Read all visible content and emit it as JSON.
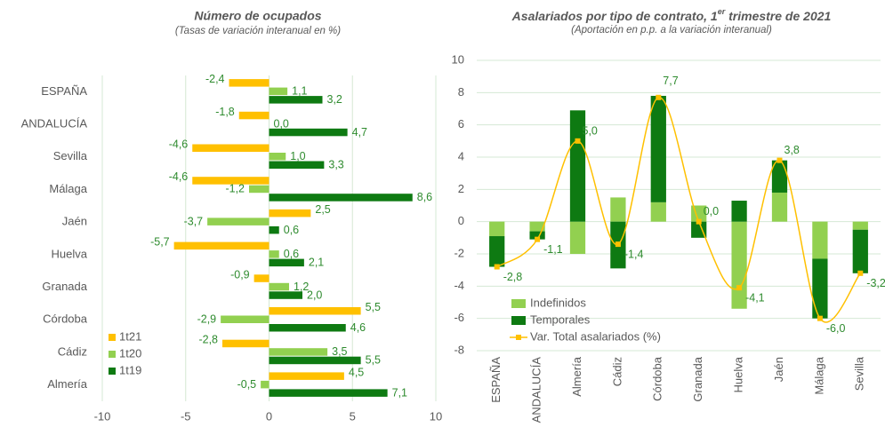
{
  "chart_data": [
    {
      "type": "barh",
      "title": "Número de ocupados",
      "subtitle": "(Tasas de variación interanual en %)",
      "categories": [
        "ESPAÑA",
        "ANDALUCÍA",
        "Sevilla",
        "Málaga",
        "Jaén",
        "Huelva",
        "Granada",
        "Córdoba",
        "Cádiz",
        "Almería"
      ],
      "series": [
        {
          "name": "1t21",
          "color": "#ffc000",
          "values": [
            -2.4,
            -1.8,
            -4.6,
            -4.6,
            2.5,
            -5.7,
            -0.9,
            5.5,
            -2.8,
            4.5
          ],
          "value_labels": [
            "-2,4",
            "-1,8",
            "-4,6",
            "-4,6",
            "2,5",
            "-5,7",
            "-0,9",
            "5,5",
            "-2,8",
            "4,5"
          ]
        },
        {
          "name": "1t20",
          "color": "#92d050",
          "values": [
            1.1,
            0.0,
            1.0,
            -1.2,
            -3.7,
            0.6,
            1.2,
            -2.9,
            3.5,
            -0.5
          ],
          "value_labels": [
            "1,1",
            "0,0",
            "1,0",
            "-1,2",
            "-3,7",
            "0,6",
            "1,2",
            "-2,9",
            "3,5",
            "-0,5"
          ]
        },
        {
          "name": "1t19",
          "color": "#0e7a12",
          "values": [
            3.2,
            4.7,
            3.3,
            8.6,
            0.6,
            2.1,
            2.0,
            4.6,
            5.5,
            7.1
          ],
          "value_labels": [
            "3,2",
            "4,7",
            "3,3",
            "8,6",
            "0,6",
            "2,1",
            "2,0",
            "4,6",
            "5,5",
            "7,1"
          ]
        }
      ],
      "xlim": [
        -10,
        10
      ],
      "xticks": [
        -10,
        -5,
        0,
        5,
        10
      ],
      "grid": true,
      "legend": "lower left"
    },
    {
      "type": "combo",
      "title": [
        "Asalariados por tipo de contrato, 1",
        "er",
        " trimestre de 2021"
      ],
      "subtitle": "(Aportación en p.p. a la variación interanual)",
      "categories": [
        "ESPAÑA",
        "ANDALUCÍA",
        "Almería",
        "Cádiz",
        "Córdoba",
        "Granada",
        "Huelva",
        "Jaén",
        "Málaga",
        "Sevilla"
      ],
      "series": [
        {
          "name": "Indefinidos",
          "type": "bar",
          "color": "#92d050",
          "values": [
            -0.9,
            -0.6,
            -2.0,
            1.5,
            1.2,
            1.0,
            -5.4,
            1.8,
            -2.3,
            -0.5
          ]
        },
        {
          "name": "Temporales",
          "type": "bar",
          "color": "#0e7a12",
          "values": [
            -1.9,
            -0.5,
            6.9,
            -2.9,
            6.6,
            -1.0,
            1.3,
            2.0,
            -3.7,
            -2.7
          ]
        },
        {
          "name": "Var. Total asalariados (%)",
          "type": "line",
          "color": "#ffc000",
          "values": [
            -2.8,
            -1.1,
            5.0,
            -1.4,
            7.7,
            0.0,
            -4.1,
            3.8,
            -6.0,
            -3.2
          ],
          "value_labels": [
            "-2,8",
            "-1,1",
            "5,0",
            "-1,4",
            "7,7",
            "0,0",
            "-4,1",
            "3,8",
            "-6,0",
            "-3,2"
          ]
        }
      ],
      "ylim": [
        -8,
        10
      ],
      "yticks": [
        -8,
        -6,
        -4,
        -2,
        0,
        2,
        4,
        6,
        8,
        10
      ],
      "grid": true,
      "legend": "lower left"
    }
  ]
}
